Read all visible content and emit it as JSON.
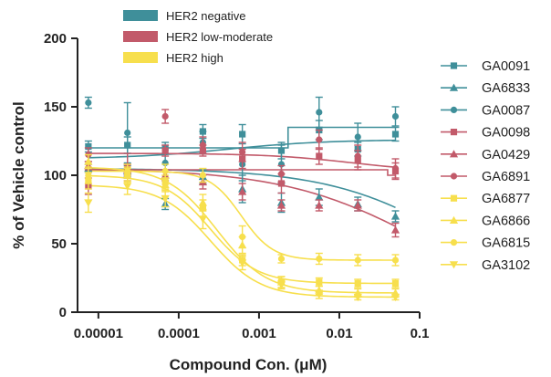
{
  "chart_data": {
    "type": "scatter",
    "xlabel": "Compound Con. (μM)",
    "ylabel": "% of Vehicle control",
    "xscale": "log",
    "xlim": [
      5.5e-06,
      0.1
    ],
    "ylim": [
      0,
      200
    ],
    "xticks": [
      1e-05,
      0.0001,
      0.001,
      0.01,
      0.1
    ],
    "xtick_labels": [
      "0.00001",
      "0.0001",
      "0.001",
      "0.01",
      "0.1"
    ],
    "yticks": [
      0,
      50,
      100,
      150,
      200
    ],
    "ytick_labels": [
      "0",
      "50",
      "100",
      "150",
      "200"
    ],
    "x": [
      7.5e-06,
      2.3e-05,
      6.8e-05,
      0.0002,
      0.00062,
      0.0019,
      0.0056,
      0.017,
      0.05
    ],
    "groups": [
      {
        "name": "HER2 negative",
        "color": "#3f8f9a"
      },
      {
        "name": "HER2 low-moderate",
        "color": "#c25a6a"
      },
      {
        "name": "HER2 high",
        "color": "#f7df4d"
      }
    ],
    "series": [
      {
        "name": "GA0091",
        "group": 0,
        "marker": "square",
        "values": [
          121,
          122,
          120,
          132,
          130,
          118,
          133,
          119,
          130
        ],
        "errors": [
          4,
          6,
          4,
          5,
          7,
          6,
          7,
          5,
          5
        ],
        "fit": "step",
        "fit_params": {
          "top": 120,
          "bottom": 135,
          "step_x": 0.0023
        }
      },
      {
        "name": "GA6833",
        "group": 0,
        "marker": "triangle-up",
        "values": [
          105,
          103,
          79,
          99,
          90,
          80,
          84,
          79,
          70
        ],
        "errors": [
          3,
          4,
          4,
          5,
          10,
          7,
          6,
          5,
          4
        ],
        "fit": "hill",
        "fit_params": {
          "top": 105,
          "bottom": 0,
          "ec50": 0.3,
          "hill": 0.55
        }
      },
      {
        "name": "GA0087",
        "group": 0,
        "marker": "circle",
        "values": [
          153,
          131,
          109,
          124,
          108,
          108,
          146,
          128,
          143
        ],
        "errors": [
          4,
          22,
          11,
          8,
          12,
          14,
          11,
          10,
          7
        ],
        "fit": "hill",
        "fit_params": {
          "top": 112,
          "bottom": 126,
          "ec50": 0.0004,
          "hill": 0.7
        }
      },
      {
        "name": "GA0098",
        "group": 1,
        "marker": "square",
        "values": [
          92,
          103,
          118,
          118,
          112,
          94,
          114,
          111,
          103
        ],
        "errors": [
          6,
          5,
          4,
          4,
          7,
          7,
          6,
          7,
          6
        ],
        "fit": "step",
        "fit_params": {
          "top": 104,
          "bottom": 100,
          "step_x": 0.04
        }
      },
      {
        "name": "GA0429",
        "group": 1,
        "marker": "triangle-up",
        "values": [
          107,
          104,
          100,
          95,
          88,
          78,
          78,
          78,
          60
        ],
        "errors": [
          3,
          4,
          4,
          5,
          6,
          4,
          4,
          4,
          5
        ],
        "fit": "hill",
        "fit_params": {
          "top": 105,
          "bottom": 0,
          "ec50": 0.11,
          "hill": 0.5
        }
      },
      {
        "name": "GA6891",
        "group": 1,
        "marker": "circle",
        "values": [
          115,
          106,
          143,
          122,
          117,
          101,
          126,
          114,
          105
        ],
        "errors": [
          5,
          10,
          5,
          6,
          7,
          6,
          7,
          8,
          7
        ],
        "fit": "hill",
        "fit_params": {
          "top": 116,
          "bottom": 102,
          "ec50": 0.015,
          "hill": 0.8
        }
      },
      {
        "name": "GA6877",
        "group": 2,
        "marker": "square",
        "values": [
          96,
          101,
          95,
          76,
          38,
          22,
          22,
          21,
          21
        ],
        "errors": [
          6,
          5,
          5,
          6,
          4,
          4,
          3,
          3,
          3
        ],
        "fit": "hill",
        "fit_params": {
          "top": 100,
          "bottom": 21,
          "ec50": 0.00025,
          "hill": 1.5
        }
      },
      {
        "name": "GA6866",
        "group": 2,
        "marker": "triangle-up",
        "values": [
          110,
          100,
          93,
          80,
          49,
          22,
          16,
          14,
          14
        ],
        "errors": [
          5,
          5,
          5,
          6,
          6,
          4,
          3,
          3,
          3
        ],
        "fit": "hill",
        "fit_params": {
          "top": 106,
          "bottom": 14,
          "ec50": 0.0003,
          "hill": 1.4
        }
      },
      {
        "name": "GA6815",
        "group": 2,
        "marker": "circle",
        "values": [
          100,
          103,
          103,
          100,
          55,
          39,
          39,
          38,
          38
        ],
        "errors": [
          6,
          5,
          5,
          5,
          8,
          3,
          4,
          4,
          4
        ],
        "fit": "hill",
        "fit_params": {
          "top": 103,
          "bottom": 38,
          "ec50": 0.0006,
          "hill": 2.2
        }
      },
      {
        "name": "GA3102",
        "group": 2,
        "marker": "triangle-down",
        "values": [
          80,
          92,
          83,
          68,
          36,
          20,
          13,
          11,
          11
        ],
        "errors": [
          7,
          6,
          6,
          7,
          5,
          3,
          3,
          2,
          2
        ],
        "fit": "hill",
        "fit_params": {
          "top": 93,
          "bottom": 11,
          "ec50": 0.00025,
          "hill": 1.4
        }
      }
    ]
  }
}
